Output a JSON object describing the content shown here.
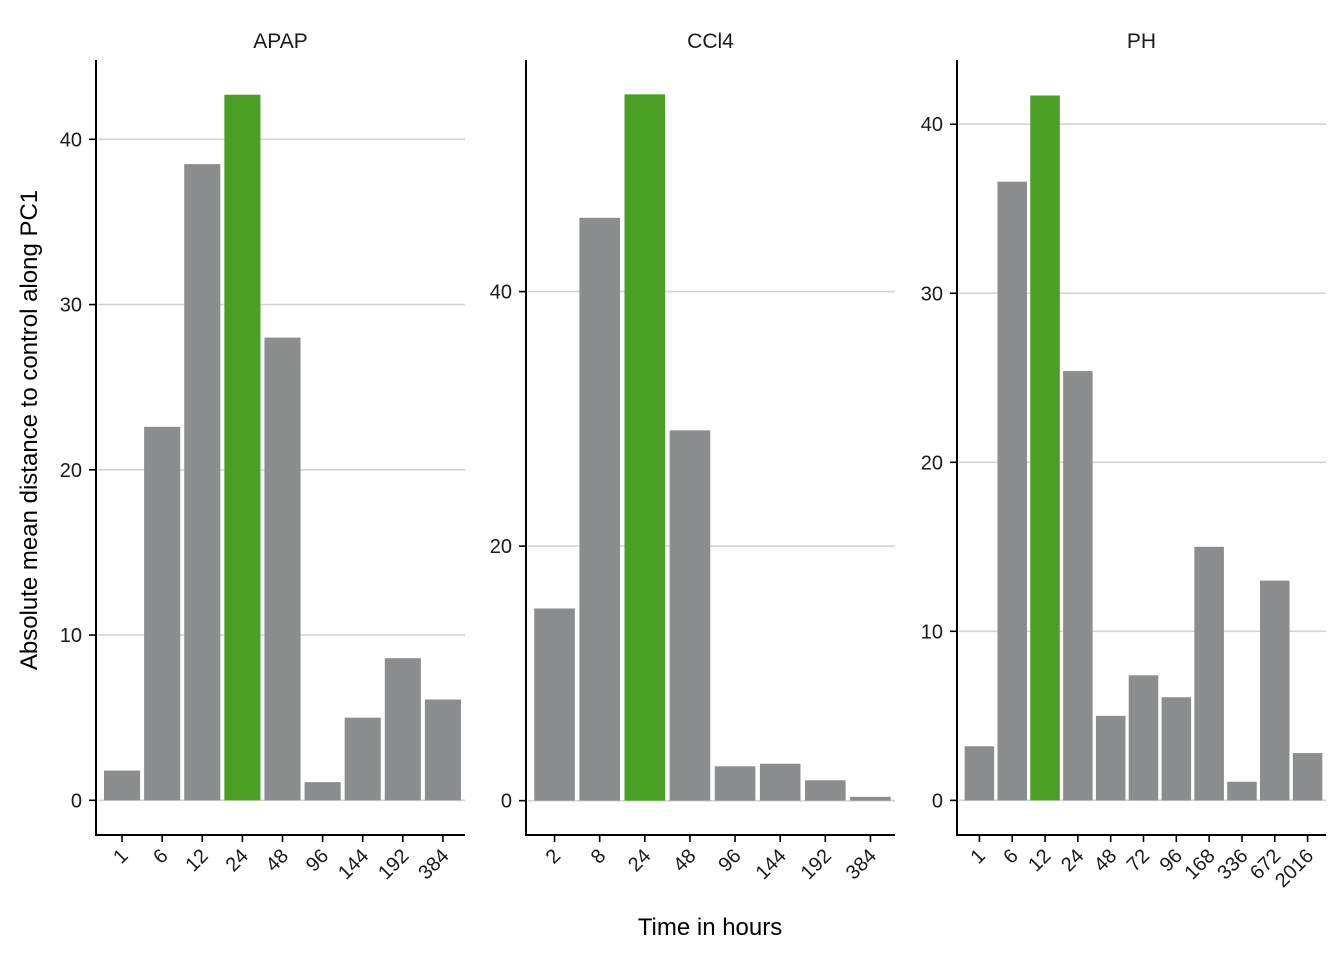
{
  "chart_data": {
    "type": "bar",
    "xlabel": "Time in hours",
    "ylabel": "Absolute mean distance to control along PC1",
    "grid": "horizontal",
    "colors": {
      "highlight": "#4aa024",
      "default": "#8c8d8f",
      "grid": "#d3d3d3"
    },
    "panels": [
      {
        "title": "APAP",
        "categories": [
          "1",
          "6",
          "12",
          "24",
          "48",
          "96",
          "144",
          "192",
          "384"
        ],
        "values": [
          1.8,
          22.6,
          38.5,
          42.7,
          28.0,
          1.1,
          5.0,
          8.6,
          6.1
        ],
        "highlight": "24",
        "ylim": [
          -2.1,
          44.8
        ],
        "yticks": [
          0,
          10,
          20,
          30,
          40
        ]
      },
      {
        "title": "CCl4",
        "categories": [
          "2",
          "8",
          "24",
          "48",
          "96",
          "144",
          "192",
          "384"
        ],
        "values": [
          15.1,
          45.8,
          55.5,
          29.1,
          2.7,
          2.9,
          1.6,
          0.3
        ],
        "highlight": "24",
        "ylim": [
          -2.7,
          58.2
        ],
        "yticks": [
          0,
          20,
          40
        ]
      },
      {
        "title": "PH",
        "categories": [
          "1",
          "6",
          "12",
          "24",
          "48",
          "72",
          "96",
          "168",
          "336",
          "672",
          "2016"
        ],
        "values": [
          3.2,
          36.6,
          41.7,
          25.4,
          5.0,
          7.4,
          6.1,
          15.0,
          1.1,
          13.0,
          2.8
        ],
        "highlight": "12",
        "ylim": [
          -2.05,
          43.8
        ],
        "yticks": [
          0,
          10,
          20,
          30,
          40
        ]
      }
    ]
  }
}
